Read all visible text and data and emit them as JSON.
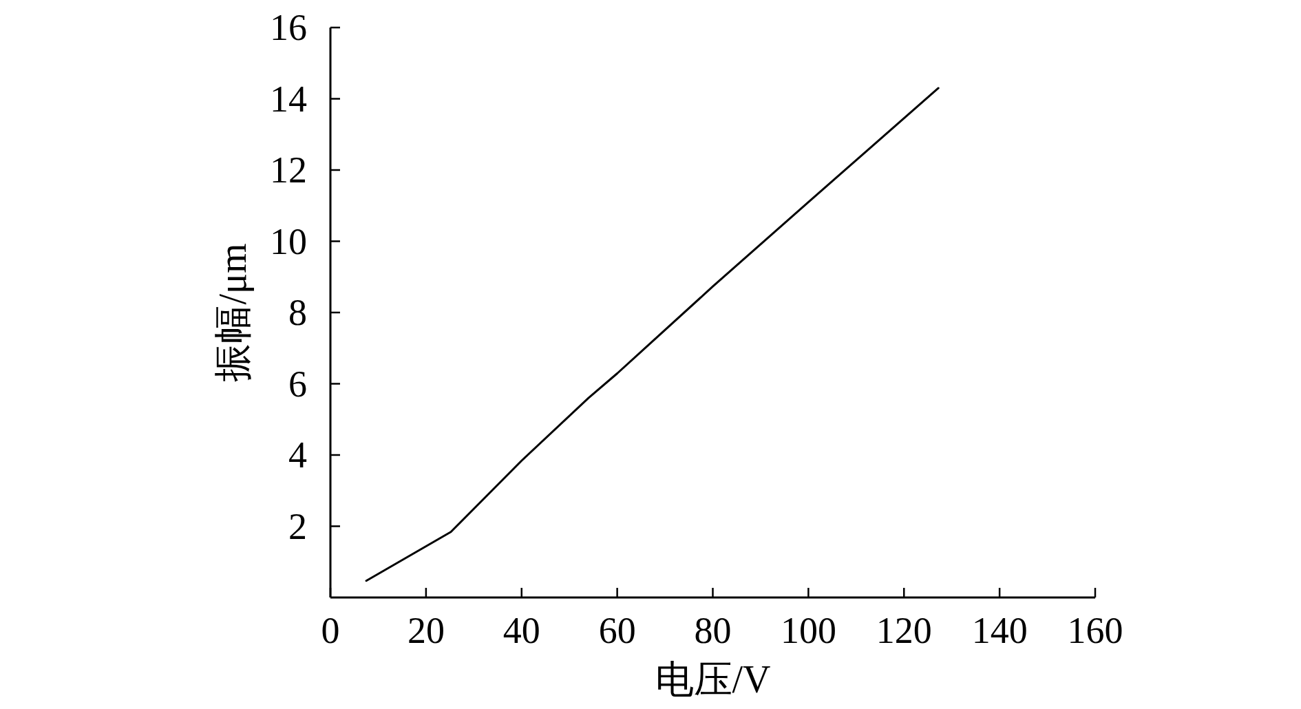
{
  "chart_data": {
    "type": "line",
    "xlabel": "电压/V",
    "ylabel": "振幅/μm",
    "xlim": [
      0,
      160
    ],
    "ylim": [
      0,
      16
    ],
    "xticks": [
      0,
      20,
      40,
      60,
      80,
      100,
      120,
      140,
      160
    ],
    "yticks": [
      2,
      4,
      6,
      8,
      10,
      12,
      14,
      16
    ],
    "series": [
      {
        "color": "#000000",
        "x": [
          7.5,
          25.2,
          40,
          54,
          60,
          80,
          100,
          127.2
        ],
        "values": [
          0.47,
          1.84,
          3.84,
          5.6,
          6.29,
          8.73,
          11.1,
          14.3
        ]
      }
    ]
  }
}
